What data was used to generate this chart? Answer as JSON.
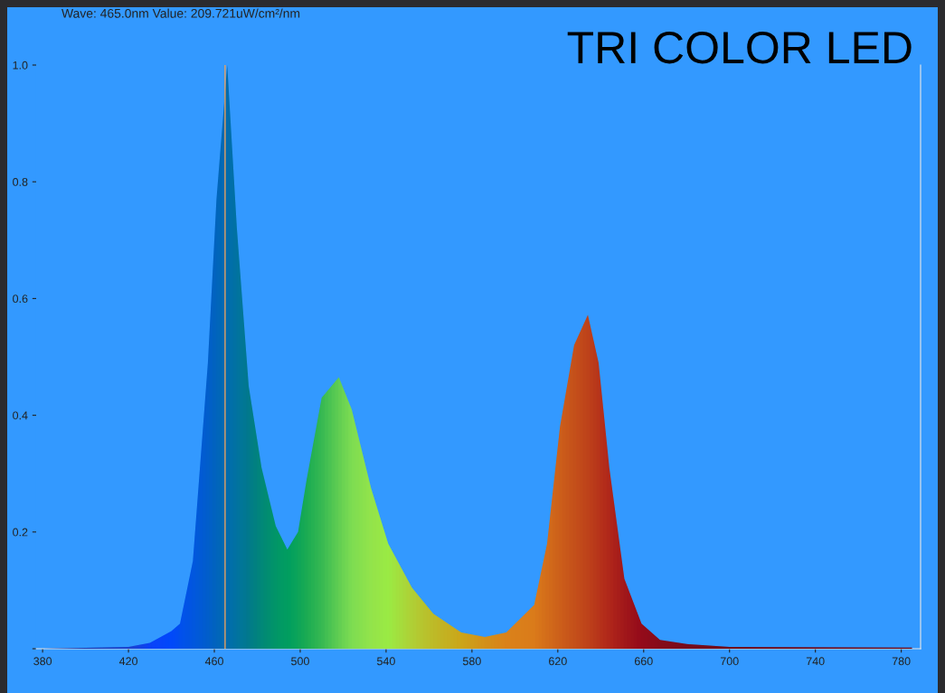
{
  "chart_data": {
    "type": "area",
    "title": "TRI COLOR LED",
    "annotations": [
      "Wave: 465.0nm Value: 209.721uW/cm²/nm"
    ],
    "x": [
      380,
      420,
      430,
      440,
      444,
      450,
      457,
      461,
      466,
      470.5,
      476,
      482,
      488.6,
      494,
      499,
      503,
      510,
      518,
      524,
      533,
      541,
      552,
      562,
      575,
      586,
      596,
      609,
      615,
      621,
      627.6,
      634,
      639,
      644,
      651,
      659,
      667.6,
      680,
      700,
      785
    ],
    "series": [
      {
        "color": "#0a5ad8",
        "values": [
          0,
          0.003,
          0.01,
          0.03,
          0.043,
          0.15,
          0.49,
          0.77,
          1.0,
          0.72,
          0.45,
          0.31,
          0.21,
          0.17,
          0.2,
          0.29,
          0.43,
          0.465,
          0.41,
          0.275,
          0.18,
          0.105,
          0.06,
          0.028,
          0.02,
          0.028,
          0.075,
          0.18,
          0.38,
          0.52,
          0.572,
          0.49,
          0.31,
          0.12,
          0.043,
          0.015,
          0.008,
          0.003,
          0.002
        ],
        "colors": [
          "#1a2a8a",
          "#1f3fd0",
          "#0a40ff",
          "#0048ff",
          "#0050f0",
          "#0058e0",
          "#0060c8",
          "#0068b8",
          "#0070a8",
          "#007898",
          "#008080",
          "#00906a",
          "#00a058",
          "#00a850",
          "#10b048",
          "#20b840",
          "#40c840",
          "#70e040",
          "#90f040",
          "#a8f838",
          "#b0ff30",
          "#c8e020",
          "#d8c810",
          "#e8b000",
          "#f09800",
          "#f88800",
          "#f88000",
          "#f07000",
          "#e86000",
          "#e05000",
          "#d84000",
          "#d03000",
          "#c82000",
          "#b81000",
          "#a80000",
          "#980000",
          "#880000",
          "#800000",
          "#800000"
        ]
      }
    ],
    "xlim": [
      377,
      789
    ],
    "ylim": [
      0,
      1.0
    ],
    "xticks": [
      380,
      420,
      460,
      500,
      540,
      580,
      620,
      660,
      700,
      740,
      780
    ],
    "yticks": [
      {
        "value": 0,
        "label": null
      },
      0.2,
      0.4,
      0.6,
      0.8,
      {
        "value": 1.0,
        "label": "1.0"
      }
    ],
    "ref_lines": [
      {
        "axis": "x",
        "value": 465,
        "color": "#e8a060"
      }
    ],
    "grid": false
  }
}
